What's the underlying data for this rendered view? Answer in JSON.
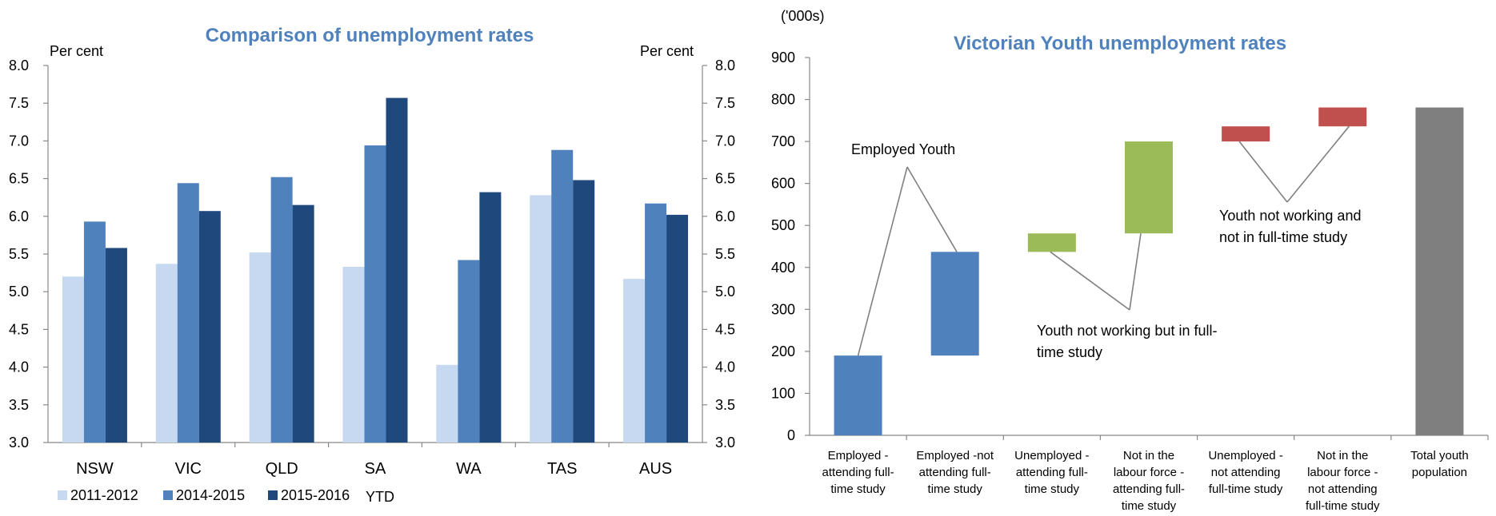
{
  "chart_data": [
    {
      "type": "bar",
      "title": "Comparison of unemployment rates",
      "ylabel": "Per cent",
      "ylabel_right": "Per cent",
      "ylim": [
        3.0,
        8.0
      ],
      "yticks": [
        "3.0",
        "3.5",
        "4.0",
        "4.5",
        "5.0",
        "5.5",
        "6.0",
        "6.5",
        "7.0",
        "7.5",
        "8.0"
      ],
      "categories": [
        "NSW",
        "VIC",
        "QLD",
        "SA",
        "WA",
        "TAS",
        "AUS"
      ],
      "series": [
        {
          "name": "2011-2012",
          "color": "#c6d9f1",
          "values": [
            5.2,
            5.37,
            5.52,
            5.33,
            4.03,
            6.28,
            5.17
          ]
        },
        {
          "name": "2014-2015",
          "color": "#4f81bd",
          "values": [
            5.93,
            6.44,
            6.52,
            6.94,
            5.42,
            6.88,
            6.17
          ]
        },
        {
          "name": "2015-2016",
          "color": "#1f497d",
          "values": [
            5.58,
            6.07,
            6.15,
            7.57,
            6.32,
            6.48,
            6.02
          ]
        }
      ],
      "legend_suffix": "YTD",
      "legend_position": "bottom"
    },
    {
      "type": "bar",
      "title": "Victorian Youth unemployment rates",
      "ylabel": "('000s)",
      "ylim": [
        0,
        900
      ],
      "yticks": [
        "0",
        "100",
        "200",
        "300",
        "400",
        "500",
        "600",
        "700",
        "800",
        "900"
      ],
      "categories": [
        [
          "Employed -",
          "attending full-",
          "time study"
        ],
        [
          "Employed -not",
          "attending full-",
          "time study"
        ],
        [
          "Unemployed -",
          "attending full-",
          "time study"
        ],
        [
          "Not in the",
          "labour force -",
          "attending full-",
          "time study"
        ],
        [
          "Unemployed -",
          "not attending",
          "full-time study"
        ],
        [
          "Not in the",
          "labour force -",
          "not attending",
          "full-time study"
        ],
        [
          "Total youth",
          "population"
        ]
      ],
      "bars": [
        {
          "base": 0,
          "value": 190,
          "color": "#4f81bd"
        },
        {
          "base": 190,
          "value": 437,
          "color": "#4f81bd"
        },
        {
          "base": 437,
          "value": 481,
          "color": "#9bbb59"
        },
        {
          "base": 481,
          "value": 700,
          "color": "#9bbb59"
        },
        {
          "base": 700,
          "value": 736,
          "color": "#c0504d"
        },
        {
          "base": 736,
          "value": 781,
          "color": "#c0504d"
        },
        {
          "base": 0,
          "value": 781,
          "color": "#7f7f7f"
        }
      ],
      "annotations": [
        {
          "lines": [
            "Employed Youth"
          ]
        },
        {
          "lines": [
            "Youth not working but in full-",
            "time study"
          ]
        },
        {
          "lines": [
            "Youth not working and",
            "not in full-time study"
          ]
        }
      ]
    }
  ]
}
